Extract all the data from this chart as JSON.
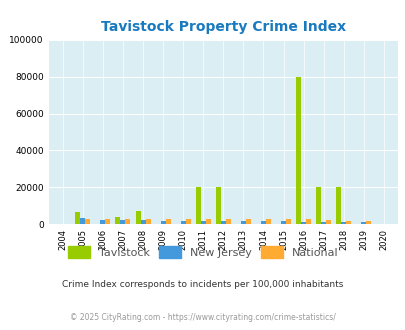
{
  "title": "Tavistock Property Crime Index",
  "title_color": "#1a7abf",
  "years": [
    2004,
    2005,
    2006,
    2007,
    2008,
    2009,
    2010,
    2011,
    2012,
    2013,
    2014,
    2015,
    2016,
    2017,
    2018,
    2019,
    2020
  ],
  "tavistock": [
    0,
    6500,
    0,
    4000,
    7500,
    0,
    0,
    20000,
    20000,
    0,
    0,
    0,
    80000,
    20000,
    20000,
    0,
    0
  ],
  "new_jersey": [
    0,
    3200,
    2200,
    2200,
    2200,
    2000,
    1800,
    1800,
    2000,
    2000,
    2000,
    1800,
    1500,
    1500,
    1500,
    1500,
    0
  ],
  "national": [
    0,
    2800,
    2800,
    2800,
    2800,
    2800,
    2800,
    2800,
    2800,
    2800,
    2800,
    2800,
    2800,
    2500,
    2000,
    1800,
    0
  ],
  "tavistock_color": "#99cc00",
  "new_jersey_color": "#4499dd",
  "national_color": "#ffaa33",
  "bg_color": "#daeef4",
  "plot_bg": "#daeef4",
  "fig_bg": "#ffffff",
  "ylim": [
    0,
    100000
  ],
  "yticks": [
    0,
    20000,
    40000,
    60000,
    80000,
    100000
  ],
  "bar_width": 0.25,
  "footnote1": "Crime Index corresponds to incidents per 100,000 inhabitants",
  "footnote2": "© 2025 CityRating.com - https://www.cityrating.com/crime-statistics/",
  "legend_labels": [
    "Tavistock",
    "New Jersey",
    "National"
  ]
}
